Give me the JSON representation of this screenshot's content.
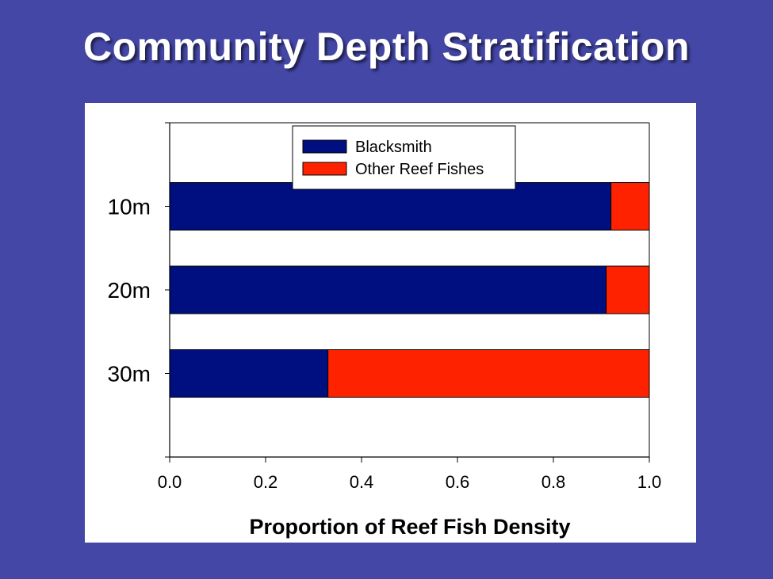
{
  "title": "Community Depth Stratification",
  "chart_data": {
    "type": "bar",
    "orientation": "horizontal",
    "stacked": true,
    "categories": [
      "10m",
      "20m",
      "30m"
    ],
    "series": [
      {
        "name": "Blacksmith",
        "color": "#000f80",
        "values": [
          0.92,
          0.91,
          0.33
        ]
      },
      {
        "name": "Other Reef Fishes",
        "color": "#ff2200",
        "values": [
          0.08,
          0.09,
          0.67
        ]
      }
    ],
    "xlabel": "Proportion of Reef Fish Density",
    "ylabel": "",
    "xlim": [
      0,
      1
    ],
    "xticks": [
      "0.0",
      "0.2",
      "0.4",
      "0.6",
      "0.8",
      "1.0"
    ],
    "grid": false,
    "legend_position": "top-center"
  }
}
